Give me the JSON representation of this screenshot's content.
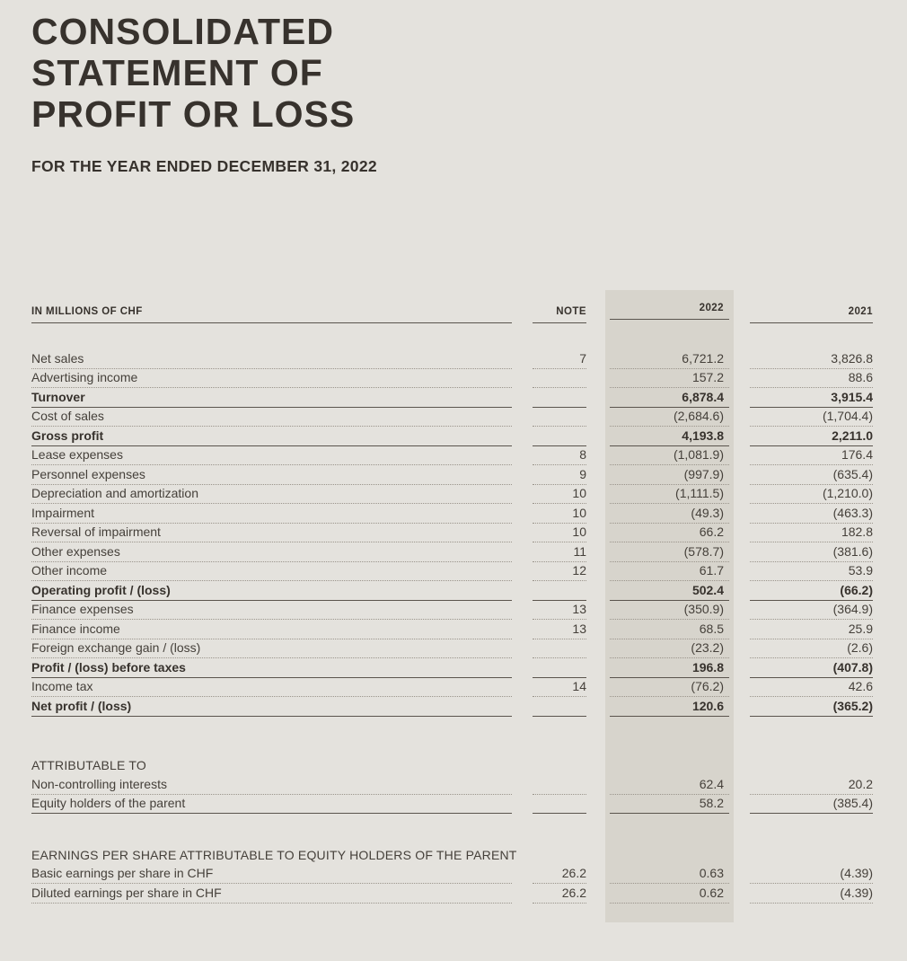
{
  "header": {
    "title": "CONSOLIDATED\nSTATEMENT OF\nPROFIT OR LOSS",
    "subtitle": "FOR THE YEAR ENDED DECEMBER 31, 2022"
  },
  "theme": {
    "background": "#e4e2dd",
    "highlight_column": "#d7d4cc",
    "text": "#45403a",
    "text_strong": "#37322d",
    "rule_solid": "#5a544d",
    "rule_dotted": "#9a948b"
  },
  "table": {
    "columns": {
      "label_header": "IN MILLIONS OF CHF",
      "note_header": "NOTE",
      "year_current": "2022",
      "year_prior": "2021"
    },
    "sections": [
      {
        "id": "main",
        "heading": null,
        "rows": [
          {
            "label": "Net sales",
            "note": "7",
            "v2022": "6,721.2",
            "v2021": "3,826.8",
            "bold": false,
            "rule": "dotted"
          },
          {
            "label": "Advertising income",
            "note": "",
            "v2022": "157.2",
            "v2021": "88.6",
            "bold": false,
            "rule": "dotted"
          },
          {
            "label": "Turnover",
            "note": "",
            "v2022": "6,878.4",
            "v2021": "3,915.4",
            "bold": true,
            "rule": "solid"
          },
          {
            "label": "Cost of sales",
            "note": "",
            "v2022": "(2,684.6)",
            "v2021": "(1,704.4)",
            "bold": false,
            "rule": "dotted"
          },
          {
            "label": "Gross profit",
            "note": "",
            "v2022": "4,193.8",
            "v2021": "2,211.0",
            "bold": true,
            "rule": "solid"
          },
          {
            "label": "Lease expenses",
            "note": "8",
            "v2022": "(1,081.9)",
            "v2021": "176.4",
            "bold": false,
            "rule": "dotted"
          },
          {
            "label": "Personnel expenses",
            "note": "9",
            "v2022": "(997.9)",
            "v2021": "(635.4)",
            "bold": false,
            "rule": "dotted"
          },
          {
            "label": "Depreciation and amortization",
            "note": "10",
            "v2022": "(1,111.5)",
            "v2021": "(1,210.0)",
            "bold": false,
            "rule": "dotted"
          },
          {
            "label": "Impairment",
            "note": "10",
            "v2022": "(49.3)",
            "v2021": "(463.3)",
            "bold": false,
            "rule": "dotted"
          },
          {
            "label": "Reversal of impairment",
            "note": "10",
            "v2022": "66.2",
            "v2021": "182.8",
            "bold": false,
            "rule": "dotted"
          },
          {
            "label": "Other expenses",
            "note": "11",
            "v2022": "(578.7)",
            "v2021": "(381.6)",
            "bold": false,
            "rule": "dotted"
          },
          {
            "label": "Other income",
            "note": "12",
            "v2022": "61.7",
            "v2021": "53.9",
            "bold": false,
            "rule": "dotted"
          },
          {
            "label": "Operating profit / (loss)",
            "note": "",
            "v2022": "502.4",
            "v2021": "(66.2)",
            "bold": true,
            "rule": "solid"
          },
          {
            "label": "Finance expenses",
            "note": "13",
            "v2022": "(350.9)",
            "v2021": "(364.9)",
            "bold": false,
            "rule": "dotted"
          },
          {
            "label": "Finance income",
            "note": "13",
            "v2022": "68.5",
            "v2021": "25.9",
            "bold": false,
            "rule": "dotted"
          },
          {
            "label": "Foreign exchange gain / (loss)",
            "note": "",
            "v2022": "(23.2)",
            "v2021": "(2.6)",
            "bold": false,
            "rule": "dotted"
          },
          {
            "label": "Profit / (loss) before taxes",
            "note": "",
            "v2022": "196.8",
            "v2021": "(407.8)",
            "bold": true,
            "rule": "solid"
          },
          {
            "label": "Income tax",
            "note": "14",
            "v2022": "(76.2)",
            "v2021": "42.6",
            "bold": false,
            "rule": "dotted"
          },
          {
            "label": "Net profit / (loss)",
            "note": "",
            "v2022": "120.6",
            "v2021": "(365.2)",
            "bold": true,
            "rule": "solid"
          }
        ]
      },
      {
        "id": "attributable",
        "heading": "ATTRIBUTABLE TO",
        "rows": [
          {
            "label": "Non-controlling interests",
            "note": "",
            "v2022": "62.4",
            "v2021": "20.2",
            "bold": false,
            "rule": "dotted"
          },
          {
            "label": "Equity holders of the parent",
            "note": "",
            "v2022": "58.2",
            "v2021": "(385.4)",
            "bold": false,
            "rule": "solid"
          }
        ]
      },
      {
        "id": "eps",
        "heading": "EARNINGS PER SHARE ATTRIBUTABLE TO EQUITY HOLDERS OF THE PARENT",
        "rows": [
          {
            "label": "Basic earnings per share in CHF",
            "note": "26.2",
            "v2022": "0.63",
            "v2021": "(4.39)",
            "bold": false,
            "rule": "dotted"
          },
          {
            "label": "Diluted earnings per share in CHF",
            "note": "26.2",
            "v2022": "0.62",
            "v2021": "(4.39)",
            "bold": false,
            "rule": "dotted"
          }
        ]
      }
    ]
  }
}
